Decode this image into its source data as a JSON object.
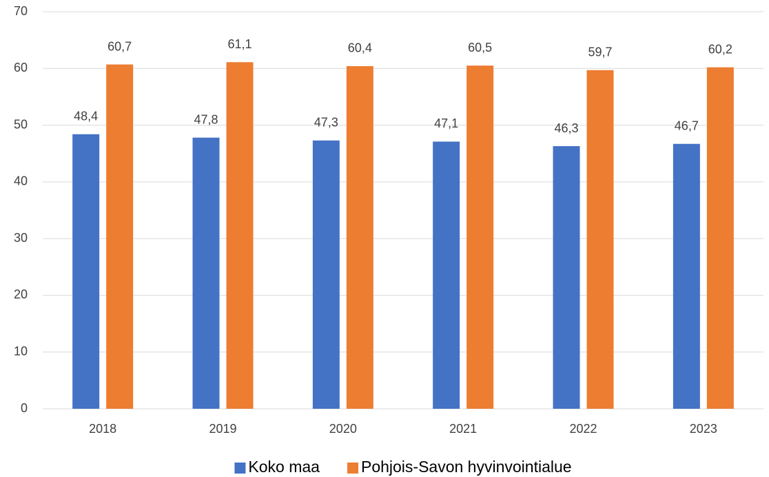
{
  "chart_data": {
    "type": "bar",
    "categories": [
      "2018",
      "2019",
      "2020",
      "2021",
      "2022",
      "2023"
    ],
    "series": [
      {
        "name": "Koko maa",
        "color": "#4472c4",
        "values": [
          48.4,
          47.8,
          47.3,
          47.1,
          46.3,
          46.7
        ],
        "value_labels": [
          "48,4",
          "47,8",
          "47,3",
          "47,1",
          "46,3",
          "46,7"
        ]
      },
      {
        "name": "Pohjois-Savon hyvinvointialue",
        "color": "#ed7d31",
        "values": [
          60.7,
          61.1,
          60.4,
          60.5,
          59.7,
          60.2
        ],
        "value_labels": [
          "60,7",
          "61,1",
          "60,4",
          "60,5",
          "59,7",
          "60,2"
        ]
      }
    ],
    "ylim": [
      0,
      70
    ],
    "yticks": [
      0,
      10,
      20,
      30,
      40,
      50,
      60,
      70
    ],
    "grid": true,
    "legend": "bottom"
  }
}
